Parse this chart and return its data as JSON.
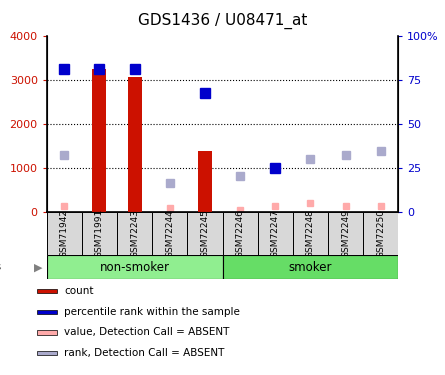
{
  "title": "GDS1436 / U08471_at",
  "samples": [
    "GSM71942",
    "GSM71991",
    "GSM72243",
    "GSM72244",
    "GSM72245",
    "GSM72246",
    "GSM72247",
    "GSM72248",
    "GSM72249",
    "GSM72250"
  ],
  "count_values": [
    null,
    3250,
    3050,
    null,
    1380,
    null,
    null,
    null,
    null,
    null
  ],
  "rank_values": [
    3250,
    3250,
    3250,
    null,
    2700,
    null,
    1000,
    null,
    null,
    null
  ],
  "absent_value": [
    130,
    null,
    null,
    80,
    null,
    40,
    130,
    200,
    130,
    130
  ],
  "absent_rank": [
    1280,
    null,
    null,
    660,
    820,
    820,
    null,
    1210,
    1295,
    1380
  ],
  "ylim_left": [
    0,
    4000
  ],
  "ylim_right": [
    0,
    100
  ],
  "left_ticks": [
    0,
    1000,
    2000,
    3000,
    4000
  ],
  "right_ticks": [
    0,
    25,
    50,
    75,
    100
  ],
  "left_tick_labels": [
    "0",
    "1000",
    "2000",
    "3000",
    "4000"
  ],
  "right_tick_labels": [
    "0",
    "25",
    "50",
    "75",
    "100%"
  ],
  "bar_color": "#cc1100",
  "rank_color": "#0000cc",
  "absent_val_color": "#ffaaaa",
  "absent_rank_color": "#aaaacc",
  "nonsmoker_color": "#90ee90",
  "smoker_color": "#66dd66",
  "label_bg_color": "#d8d8d8",
  "legend_labels": [
    "count",
    "percentile rank within the sample",
    "value, Detection Call = ABSENT",
    "rank, Detection Call = ABSENT"
  ],
  "legend_colors": [
    "#cc1100",
    "#0000cc",
    "#ffaaaa",
    "#aaaacc"
  ]
}
